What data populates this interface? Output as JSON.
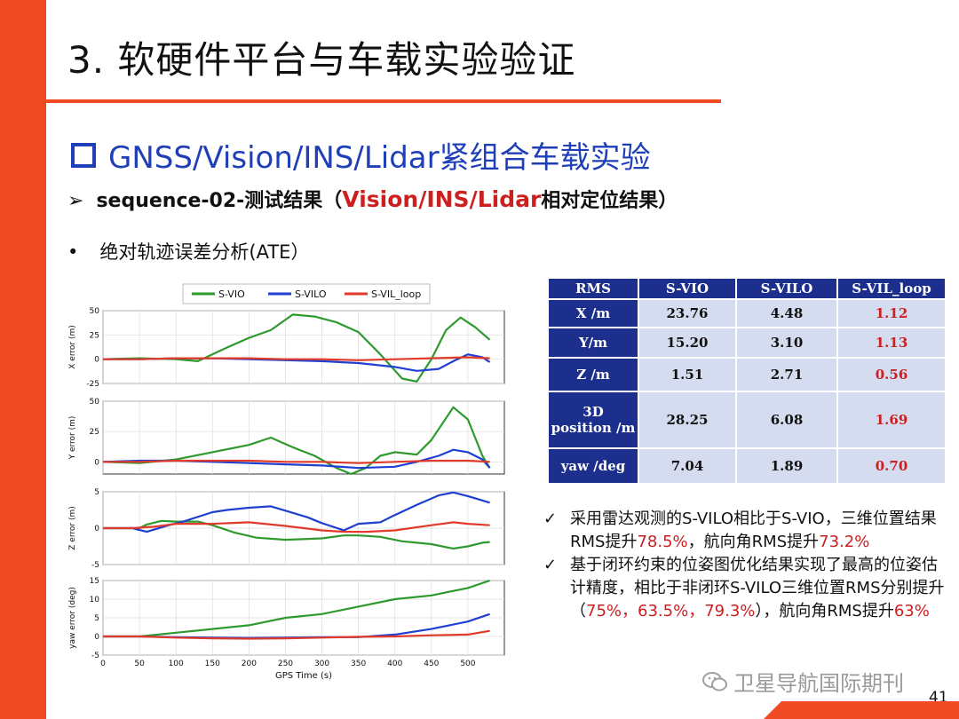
{
  "slide": {
    "title": "3. 软硬件平台与车载实验验证",
    "section": "GNSS/Vision/INS/Lidar紧组合车载实验",
    "subheading": {
      "bullet": "➢",
      "prefix": "sequence-02-测试结果（",
      "highlight": "Vision/INS/Lidar",
      "suffix": "相对定位结果）"
    },
    "ate": {
      "bullet": "•",
      "text": "绝对轨迹误差分析(ATE）"
    },
    "page_number": "41",
    "watermark": "卫星导航国际期刊",
    "colors": {
      "accent": "#ef4a23",
      "blue": "#1f3fb8",
      "red": "#cc1f1f",
      "table_head": "#1c2f8c",
      "table_cell": "#d6dcf0"
    }
  },
  "table": {
    "headers": [
      "RMS",
      "S-VIO",
      "S-VILO",
      "S-VIL_loop"
    ],
    "rows": [
      {
        "label": "X /m",
        "values": [
          "23.76",
          "4.48",
          "1.12"
        ]
      },
      {
        "label": "Y/m",
        "values": [
          "15.20",
          "3.10",
          "1.13"
        ]
      },
      {
        "label": "Z /m",
        "values": [
          "1.51",
          "2.71",
          "0.56"
        ]
      },
      {
        "label": "3D position /m",
        "label_line1": "3D",
        "label_line2": "position /m",
        "values": [
          "28.25",
          "6.08",
          "1.69"
        ]
      },
      {
        "label": "yaw /deg",
        "values": [
          "7.04",
          "1.89",
          "0.70"
        ]
      }
    ]
  },
  "notes": [
    {
      "check": "✓",
      "parts": [
        "采用雷达观测的S-VILO相比于S-VIO，三维位置结果RMS提升",
        "78.5%",
        "，航向角RMS提升",
        "73.2%",
        ""
      ]
    },
    {
      "check": "✓",
      "parts": [
        "基于闭环约束的位姿图优化结果实现了最高的位姿估计精度，相比于非闭环S-VILO三维位置RMS分别提升（",
        "75%，63.5%，79.3%",
        "），航向角RMS提升",
        "63%",
        ""
      ]
    }
  ],
  "chart_data": {
    "type": "line",
    "xlabel": "GPS Time (s)",
    "xlim": [
      0,
      550
    ],
    "xticks": [
      0,
      50,
      100,
      150,
      200,
      250,
      300,
      350,
      400,
      450,
      500
    ],
    "legend": {
      "placement": "top-center",
      "entries": [
        "S-VIO",
        "S-VILO",
        "S-VIL_loop"
      ]
    },
    "series_colors": {
      "S-VIO": "#2e9a2e",
      "S-VILO": "#1f3fd0",
      "S-VIL_loop": "#e03a2a"
    },
    "grid": true,
    "panels": [
      {
        "ylabel": "X error (m)",
        "ylim": [
          -25,
          50
        ],
        "yticks": [
          -25,
          0,
          25,
          50
        ],
        "series": [
          {
            "name": "S-VIO",
            "x": [
              0,
              50,
              100,
              130,
              170,
              200,
              230,
              260,
              290,
              320,
              350,
              380,
              410,
              430,
              450,
              470,
              490,
              510,
              530
            ],
            "y": [
              0,
              1,
              0,
              -2,
              12,
              22,
              30,
              46,
              44,
              38,
              28,
              5,
              -20,
              -23,
              0,
              30,
              43,
              33,
              20
            ]
          },
          {
            "name": "S-VILO",
            "x": [
              0,
              50,
              100,
              150,
              200,
              250,
              300,
              350,
              400,
              430,
              460,
              480,
              500,
              520,
              530
            ],
            "y": [
              0,
              0,
              1,
              1,
              0,
              -1,
              -2,
              -4,
              -8,
              -12,
              -10,
              -2,
              5,
              2,
              -3
            ]
          },
          {
            "name": "S-VIL_loop",
            "x": [
              0,
              50,
              100,
              150,
              200,
              250,
              300,
              350,
              400,
              450,
              500,
              530
            ],
            "y": [
              0,
              0,
              1,
              1,
              1,
              0,
              0,
              -1,
              0,
              1,
              2,
              1
            ]
          }
        ]
      },
      {
        "ylabel": "Y error (m)",
        "ylim": [
          -10,
          50
        ],
        "yticks": [
          0,
          25,
          50
        ],
        "series": [
          {
            "name": "S-VIO",
            "x": [
              0,
              50,
              100,
              150,
              200,
              230,
              260,
              290,
              320,
              340,
              360,
              380,
              400,
              430,
              450,
              480,
              500,
              520,
              530
            ],
            "y": [
              0,
              -1,
              2,
              8,
              14,
              20,
              12,
              5,
              -5,
              -10,
              -5,
              5,
              8,
              6,
              18,
              45,
              35,
              5,
              -5
            ]
          },
          {
            "name": "S-VILO",
            "x": [
              0,
              50,
              100,
              150,
              200,
              250,
              300,
              350,
              400,
              430,
              460,
              480,
              500,
              520,
              530
            ],
            "y": [
              0,
              1,
              1,
              0,
              -1,
              -2,
              -3,
              -5,
              -4,
              0,
              5,
              10,
              8,
              2,
              -5
            ]
          },
          {
            "name": "S-VIL_loop",
            "x": [
              0,
              50,
              100,
              150,
              200,
              250,
              300,
              350,
              400,
              450,
              500,
              530
            ],
            "y": [
              0,
              0,
              1,
              1,
              1,
              0,
              0,
              -1,
              0,
              1,
              1,
              0
            ]
          }
        ]
      },
      {
        "ylabel": "Z error (m)",
        "ylim": [
          -5,
          5
        ],
        "yticks": [
          -5,
          0,
          5
        ],
        "series": [
          {
            "name": "S-VIO",
            "x": [
              0,
              50,
              60,
              80,
              100,
              130,
              150,
              180,
              210,
              250,
              300,
              330,
              350,
              380,
              410,
              450,
              480,
              500,
              520,
              530
            ],
            "y": [
              0,
              0,
              0.5,
              1,
              0.9,
              0.9,
              0.4,
              -0.6,
              -1.3,
              -1.6,
              -1.4,
              -1,
              -1,
              -1.2,
              -1.8,
              -2.2,
              -2.8,
              -2.5,
              -2,
              -1.9
            ]
          },
          {
            "name": "S-VILO",
            "x": [
              0,
              40,
              60,
              90,
              110,
              150,
              170,
              200,
              230,
              250,
              280,
              300,
              330,
              350,
              380,
              400,
              430,
              460,
              480,
              500,
              520,
              530
            ],
            "y": [
              0,
              0,
              -0.5,
              0.4,
              0.9,
              2.2,
              2.5,
              2.8,
              3,
              2.4,
              1.5,
              0.7,
              -0.3,
              0.6,
              0.8,
              1.8,
              3.2,
              4.5,
              4.9,
              4.4,
              3.8,
              3.5
            ]
          },
          {
            "name": "S-VIL_loop",
            "x": [
              0,
              40,
              70,
              100,
              150,
              200,
              250,
              300,
              330,
              360,
              400,
              450,
              480,
              500,
              530
            ],
            "y": [
              0,
              0,
              0.2,
              0.6,
              0.6,
              0.8,
              0.3,
              -0.3,
              -0.5,
              -0.5,
              -0.3,
              0.4,
              0.8,
              0.6,
              0.4
            ]
          }
        ]
      },
      {
        "ylabel": "yaw error (deg)",
        "ylim": [
          -5,
          15
        ],
        "yticks": [
          -5,
          0,
          5,
          10,
          15
        ],
        "series": [
          {
            "name": "S-VIO",
            "x": [
              0,
              50,
              100,
              150,
              200,
              250,
              300,
              350,
              400,
              450,
              500,
              530
            ],
            "y": [
              0,
              0,
              1,
              2,
              3,
              5,
              6,
              8,
              10,
              11,
              13,
              15
            ]
          },
          {
            "name": "S-VILO",
            "x": [
              0,
              50,
              100,
              150,
              200,
              250,
              300,
              350,
              400,
              450,
              500,
              530
            ],
            "y": [
              0,
              0,
              -0.2,
              -0.3,
              -0.4,
              -0.3,
              -0.2,
              -0.2,
              0.5,
              2,
              4,
              6
            ]
          },
          {
            "name": "S-VIL_loop",
            "x": [
              0,
              50,
              100,
              150,
              200,
              250,
              300,
              350,
              400,
              450,
              500,
              530
            ],
            "y": [
              0,
              0,
              -0.3,
              -0.5,
              -0.6,
              -0.5,
              -0.3,
              -0.1,
              0,
              0.3,
              0.5,
              1.5
            ]
          }
        ]
      }
    ]
  }
}
